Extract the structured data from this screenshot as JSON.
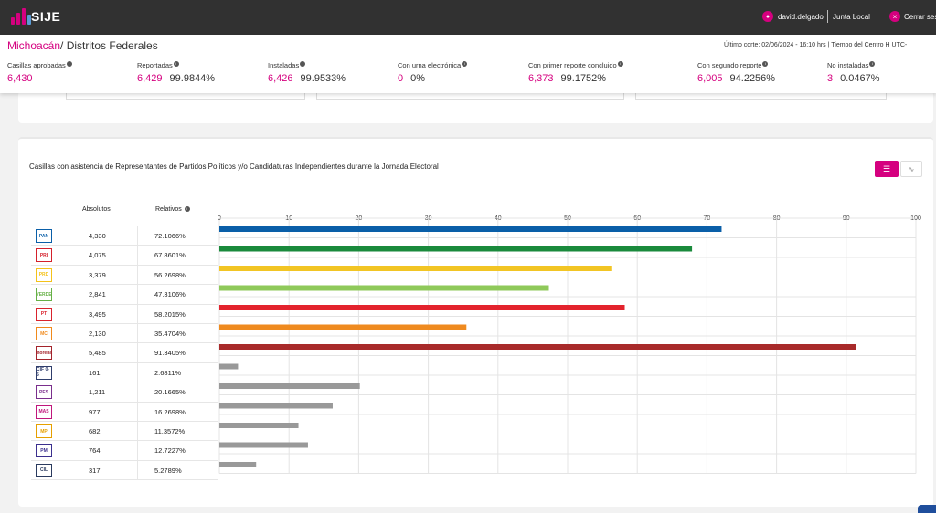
{
  "app": {
    "name": "SIJE"
  },
  "topbar": {
    "user": "david.delgado",
    "role": "Junta Local",
    "logout": "Cerrar ses"
  },
  "header": {
    "state": "Michoacán",
    "crumb_rest": "/ Distritos Federales",
    "cutoff": "Último corte: 02/06/2024 - 16:10 hrs  |  Tiempo del Centro H UTC-"
  },
  "stats": [
    {
      "label": "Casillas aprobadas",
      "number": "6,430",
      "percent": ""
    },
    {
      "label": "Reportadas",
      "number": "6,429",
      "percent": "99.9844%"
    },
    {
      "label": "Instaladas",
      "number": "6,426",
      "percent": "99.9533%"
    },
    {
      "label": "Con urna electrónica",
      "number": "0",
      "percent": "0%"
    },
    {
      "label": "Con primer reporte concluido",
      "number": "6,373",
      "percent": "99.1752%"
    },
    {
      "label": "Con segundo reporte",
      "number": "6,005",
      "percent": "94.2256%"
    },
    {
      "label": "No instaladas",
      "number": "3",
      "percent": "0.0467%"
    }
  ],
  "card": {
    "title": "Casillas con asistencia de Representantes de Partidos Políticos y/o Candidaturas Independientes durante la Jornada Electoral",
    "col_abs": "Absolutos",
    "col_rel": "Relativos",
    "list_icon": "list-icon",
    "chart_icon": "chart-icon"
  },
  "parties": [
    {
      "logo_text": "PAN",
      "logo_color": "#0a5fa8",
      "absolute": "4,330",
      "relative": "72.1066%"
    },
    {
      "logo_text": "PRI",
      "logo_color": "#d4202b",
      "absolute": "4,075",
      "relative": "67.8601%"
    },
    {
      "logo_text": "PRD",
      "logo_color": "#f4c21a",
      "absolute": "3,379",
      "relative": "56.2698%"
    },
    {
      "logo_text": "VERDE",
      "logo_color": "#66b046",
      "absolute": "2,841",
      "relative": "47.3106%"
    },
    {
      "logo_text": "PT",
      "logo_color": "#d9232d",
      "absolute": "3,495",
      "relative": "58.2015%"
    },
    {
      "logo_text": "MC",
      "logo_color": "#f08a1c",
      "absolute": "2,130",
      "relative": "35.4704%"
    },
    {
      "logo_text": "morena",
      "logo_color": "#a3232b",
      "absolute": "5,485",
      "relative": "91.3405%"
    },
    {
      "logo_text": "CIF 0-5",
      "logo_color": "#2f3d6b",
      "absolute": "161",
      "relative": "2.6811%"
    },
    {
      "logo_text": "PES",
      "logo_color": "#7a2e8c",
      "absolute": "1,211",
      "relative": "20.1665%"
    },
    {
      "logo_text": "MAS",
      "logo_color": "#c0167c",
      "absolute": "977",
      "relative": "16.2698%"
    },
    {
      "logo_text": "MP",
      "logo_color": "#e6a000",
      "absolute": "682",
      "relative": "11.3572%"
    },
    {
      "logo_text": "PM",
      "logo_color": "#3b2f8e",
      "absolute": "764",
      "relative": "12.7227%"
    },
    {
      "logo_text": "CIL",
      "logo_color": "#2a3a5e",
      "absolute": "317",
      "relative": "5.2789%"
    }
  ],
  "chart_data": {
    "type": "bar",
    "orientation": "horizontal",
    "xlim": [
      0,
      100
    ],
    "xticks": [
      "0",
      "10",
      "20",
      "30",
      "40",
      "50",
      "60",
      "70",
      "80",
      "90",
      "100"
    ],
    "grid": true,
    "values": [
      72.1066,
      67.8601,
      56.2698,
      47.3106,
      58.2015,
      35.4704,
      91.3405,
      2.6811,
      20.1665,
      16.2698,
      11.3572,
      12.7227,
      5.2789
    ],
    "colors": [
      "#0a5fa8",
      "#1a8a3c",
      "#f2c524",
      "#8fc95a",
      "#e3232d",
      "#ef8a1f",
      "#a82a2a",
      "#999999",
      "#999999",
      "#999999",
      "#999999",
      "#999999",
      "#999999"
    ]
  }
}
